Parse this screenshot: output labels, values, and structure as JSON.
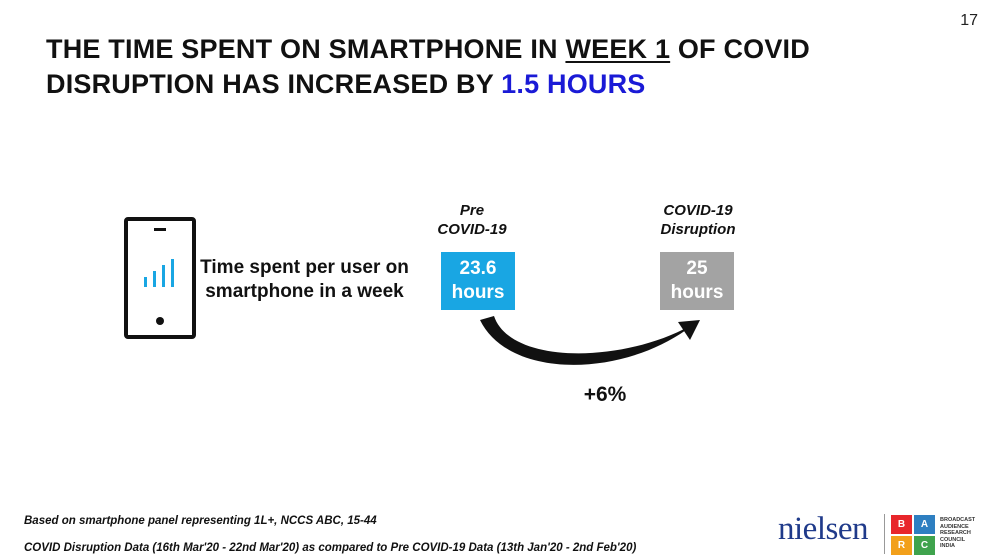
{
  "page_number": "17",
  "title": {
    "part1": "THE TIME SPENT ON SMARTPHONE IN ",
    "underlined": "WEEK 1",
    "part2": " OF COVID DISRUPTION HAS INCREASED BY ",
    "highlight": "1.5 HOURS"
  },
  "icons": {
    "phone": "smartphone-signal-icon",
    "arrow": "curved-arrow-icon"
  },
  "metric_label": "Time spent per user on smartphone in a week",
  "pre": {
    "label_line1": "Pre",
    "label_line2": "COVID-19",
    "value": "23.6",
    "unit": "hours",
    "color": "#19a6e3"
  },
  "covid": {
    "label_line1": "COVID-19",
    "label_line2": "Disruption",
    "value": "25",
    "unit": "hours",
    "color": "#a3a3a3"
  },
  "change": "+6%",
  "footnotes": [
    "Based on smartphone panel representing 1L+, NCCS ABC, 15-44",
    "COVID Disruption Data (16th Mar'20 - 22nd Mar'20) as compared to Pre COVID-19 Data (13th Jan'20 - 2nd Feb'20)"
  ],
  "logos": {
    "nielsen": "nielsen",
    "barc_letters": [
      "B",
      "A",
      "R",
      "C"
    ],
    "barc_text": [
      "BROADCAST",
      "AUDIENCE",
      "RESEARCH",
      "COUNCIL",
      "INDIA"
    ]
  }
}
